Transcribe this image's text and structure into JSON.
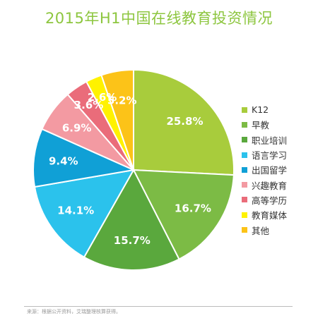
{
  "chart_data": {
    "type": "pie",
    "title": "2015年H1中国在线教育投资情况",
    "start_angle_deg": 0,
    "direction": "clockwise",
    "legend_position": "right",
    "slices": [
      {
        "label": "K12",
        "value": 25.8,
        "display": "25.8%",
        "color": "#a8cc3c"
      },
      {
        "label": "早教",
        "value": 16.7,
        "display": "16.7%",
        "color": "#7cbb45"
      },
      {
        "label": "职业培训",
        "value": 15.7,
        "display": "15.7%",
        "color": "#5aa83d"
      },
      {
        "label": "语言学习",
        "value": 14.1,
        "display": "14.1%",
        "color": "#2bc2ec"
      },
      {
        "label": "出国留学",
        "value": 9.4,
        "display": "9.4%",
        "color": "#10a0d6"
      },
      {
        "label": "兴趣教育",
        "value": 6.9,
        "display": "6.9%",
        "color": "#f39aa2"
      },
      {
        "label": "高等学历",
        "value": 3.6,
        "display": "3.6%",
        "color": "#ea6c7a"
      },
      {
        "label": "教育媒体",
        "value": 2.6,
        "display": "2.6%",
        "color": "#fff200"
      },
      {
        "label": "其他",
        "value": 5.2,
        "display": "5.2%",
        "color": "#fcc318"
      }
    ]
  },
  "colors": {
    "title": "#8dc63f",
    "label_text": "#ffffff"
  },
  "source": "来源：根据公开资料，艾瑞整理核算获得。"
}
